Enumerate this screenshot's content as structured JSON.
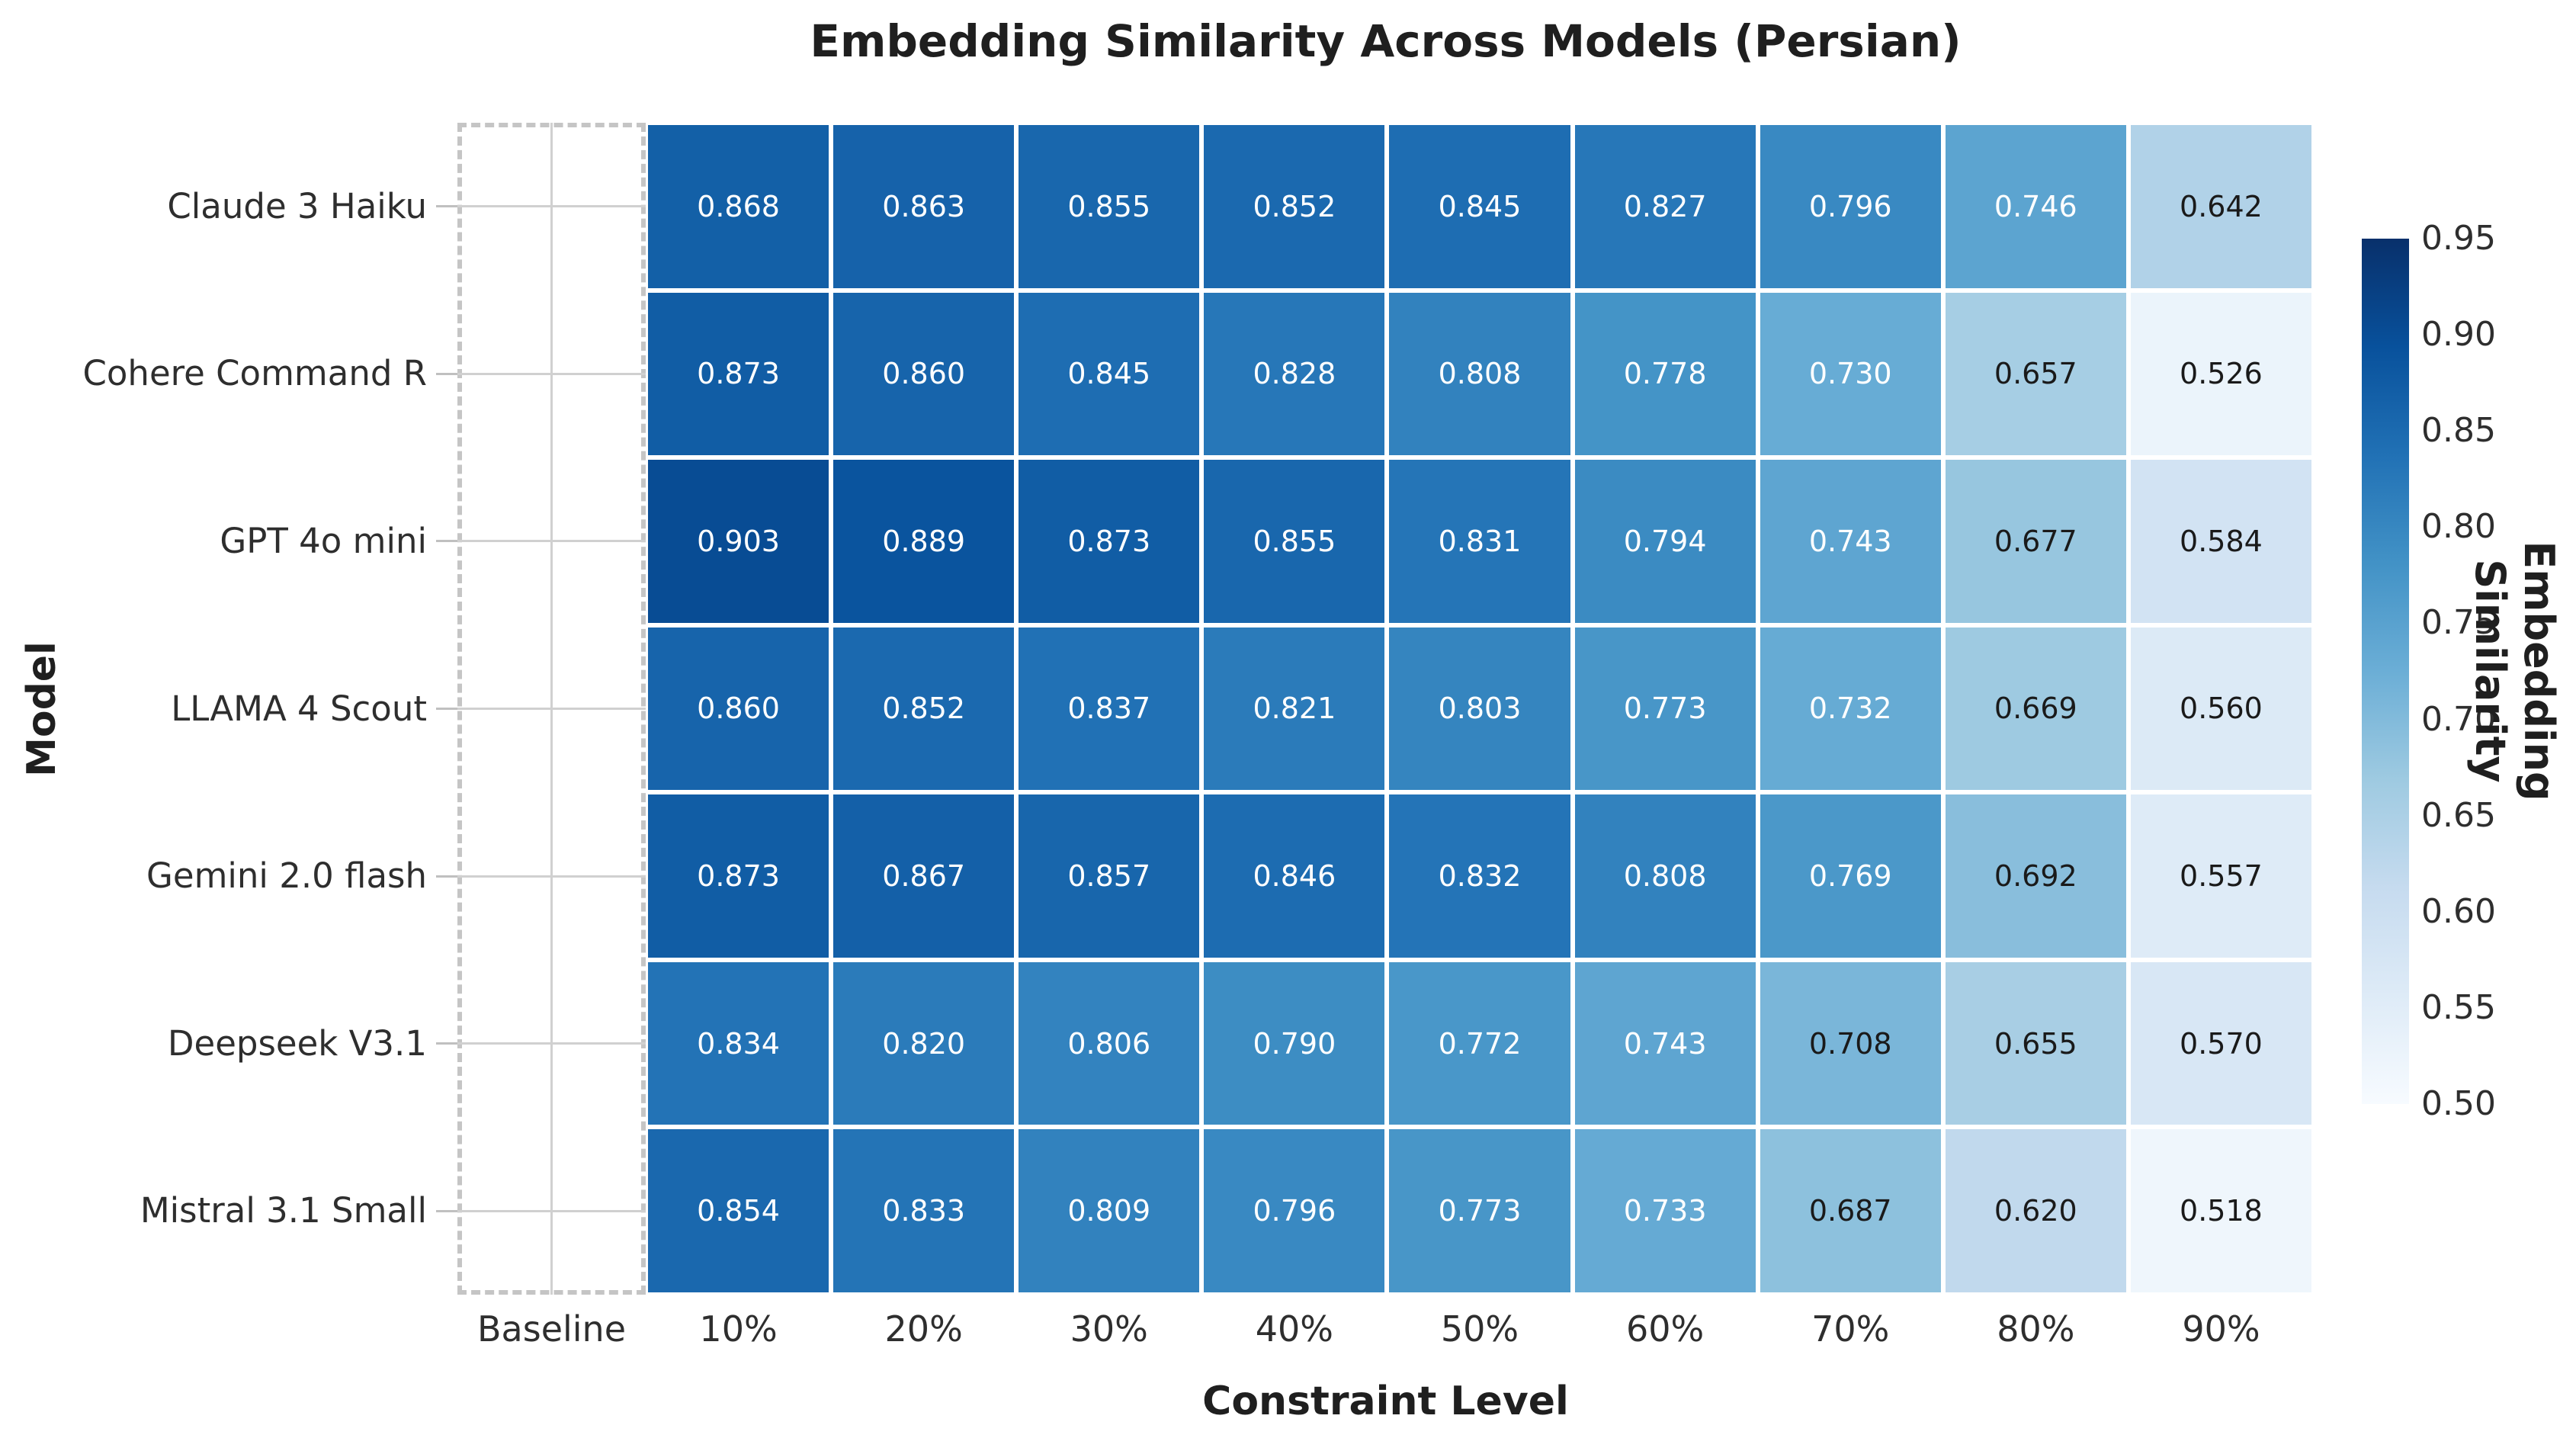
{
  "title": "Embedding Similarity Across Models (Persian)",
  "xlabel": "Constraint Level",
  "ylabel": "Model",
  "colorbar": {
    "label": "Embedding Similarity",
    "tick_values": [
      0.95,
      0.9,
      0.85,
      0.8,
      0.75,
      0.7,
      0.65,
      0.6,
      0.55,
      0.5
    ],
    "vmin": 0.5,
    "vmax": 0.95,
    "colormap_name": "Blues",
    "colormap_anchors": [
      "#f7fbff",
      "#deebf7",
      "#c6dbef",
      "#9ecae1",
      "#6baed6",
      "#4292c6",
      "#2171b5",
      "#08519c",
      "#08306b"
    ]
  },
  "chart_data": {
    "type": "heatmap",
    "title": "Embedding Similarity Across Models (Persian)",
    "xlabel": "Constraint Level",
    "ylabel": "Model",
    "x_categories": [
      "Baseline",
      "10%",
      "20%",
      "30%",
      "40%",
      "50%",
      "60%",
      "70%",
      "80%",
      "90%"
    ],
    "y_categories": [
      "Claude 3 Haiku",
      "Cohere Command R",
      "GPT 4o mini",
      "LLAMA 4 Scout",
      "Gemini 2.0 flash",
      "Deepseek V3.1",
      "Mistral 3.1 Small"
    ],
    "baseline_column_empty": true,
    "value_format_decimals": 3,
    "series": [
      {
        "name": "Claude 3 Haiku",
        "values": [
          0.868,
          0.863,
          0.855,
          0.852,
          0.845,
          0.827,
          0.796,
          0.746,
          0.642
        ]
      },
      {
        "name": "Cohere Command R",
        "values": [
          0.873,
          0.86,
          0.845,
          0.828,
          0.808,
          0.778,
          0.73,
          0.657,
          0.526
        ]
      },
      {
        "name": "GPT 4o mini",
        "values": [
          0.903,
          0.889,
          0.873,
          0.855,
          0.831,
          0.794,
          0.743,
          0.677,
          0.584
        ]
      },
      {
        "name": "LLAMA 4 Scout",
        "values": [
          0.86,
          0.852,
          0.837,
          0.821,
          0.803,
          0.773,
          0.732,
          0.669,
          0.56
        ]
      },
      {
        "name": "Gemini 2.0 flash",
        "values": [
          0.873,
          0.867,
          0.857,
          0.846,
          0.832,
          0.808,
          0.769,
          0.692,
          0.557
        ]
      },
      {
        "name": "Deepseek V3.1",
        "values": [
          0.834,
          0.82,
          0.806,
          0.79,
          0.772,
          0.743,
          0.708,
          0.655,
          0.57
        ]
      },
      {
        "name": "Mistral 3.1 Small",
        "values": [
          0.854,
          0.833,
          0.809,
          0.796,
          0.773,
          0.733,
          0.687,
          0.62,
          0.518
        ]
      }
    ],
    "legend": "none",
    "grid": "visible-in-empty-baseline-column",
    "colorbar_position": "right"
  }
}
